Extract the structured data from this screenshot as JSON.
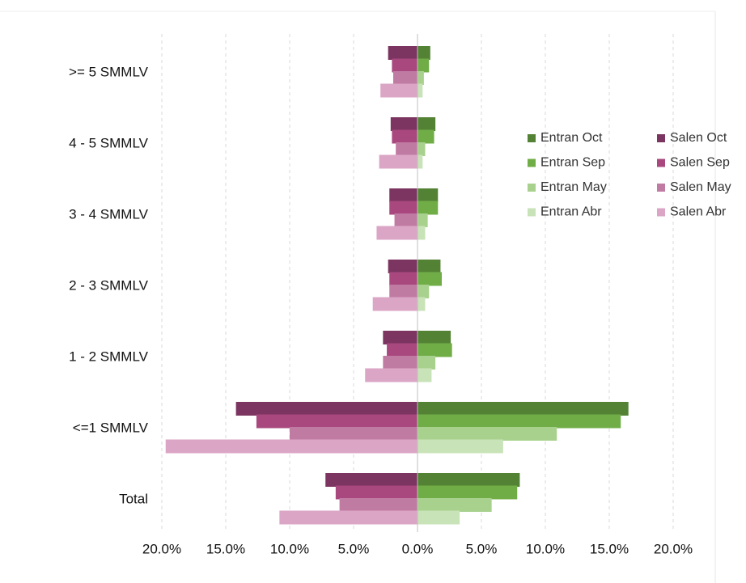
{
  "chart_data": {
    "type": "butterfly",
    "categories": [
      ">= 5 SMMLV",
      "4 - 5 SMMLV",
      "3 - 4 SMMLV",
      "2 - 3 SMMLV",
      "1 - 2 SMMLV",
      "<=1 SMMLV",
      "Total"
    ],
    "series": [
      {
        "name": "Entran Oct",
        "color": "#548235",
        "values": [
          1.0,
          1.4,
          1.6,
          1.8,
          2.6,
          16.5,
          8.0
        ]
      },
      {
        "name": "Entran Sep",
        "color": "#70ad47",
        "values": [
          0.9,
          1.3,
          1.6,
          1.9,
          2.7,
          15.9,
          7.8
        ]
      },
      {
        "name": "Entran May",
        "color": "#a9d18e",
        "values": [
          0.5,
          0.6,
          0.8,
          0.9,
          1.4,
          10.9,
          5.8
        ]
      },
      {
        "name": "Entran Abr",
        "color": "#c9e3b8",
        "values": [
          0.4,
          0.4,
          0.6,
          0.6,
          1.1,
          6.7,
          3.3
        ]
      },
      {
        "name": "Salen Oct",
        "color": "#7b3560",
        "values": [
          -2.3,
          -2.1,
          -2.2,
          -2.3,
          -2.7,
          -14.2,
          -7.2
        ]
      },
      {
        "name": "Salen Sep",
        "color": "#a8487e",
        "values": [
          -2.0,
          -2.0,
          -2.2,
          -2.2,
          -2.4,
          -12.6,
          -6.4
        ]
      },
      {
        "name": "Salen May",
        "color": "#c07ba3",
        "values": [
          -1.9,
          -1.7,
          -1.8,
          -2.2,
          -2.7,
          -10.0,
          -6.1
        ]
      },
      {
        "name": "Salen Abr",
        "color": "#dba6c6",
        "values": [
          -2.9,
          -3.0,
          -3.2,
          -3.5,
          -4.1,
          -19.7,
          -10.8
        ]
      }
    ],
    "xlim": [
      -20,
      20
    ],
    "xticks": [
      {
        "value": -20,
        "label": "20.0%"
      },
      {
        "value": -15,
        "label": "15.0%"
      },
      {
        "value": -10,
        "label": "10.0%"
      },
      {
        "value": -5,
        "label": "5.0%"
      },
      {
        "value": 0,
        "label": "0.0%"
      },
      {
        "value": 5,
        "label": "5.0%"
      },
      {
        "value": 10,
        "label": "10.0%"
      },
      {
        "value": 15,
        "label": "15.0%"
      },
      {
        "value": 20,
        "label": "20.0%"
      }
    ],
    "grid": true
  }
}
